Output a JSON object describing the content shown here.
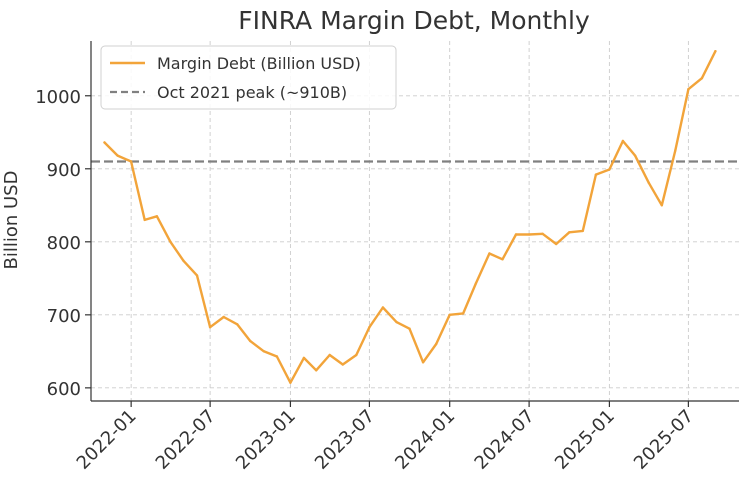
{
  "chart_data": {
    "type": "line",
    "title": "FINRA Margin Debt, Monthly",
    "xlabel": "",
    "ylabel": "Billion USD",
    "ylim": [
      582,
      1075
    ],
    "xlim": [
      "2021-10-01",
      "2025-10-25"
    ],
    "grid": true,
    "legend_position": "top-left",
    "x_ticks": [
      "2022-01",
      "2022-07",
      "2023-01",
      "2023-07",
      "2024-01",
      "2024-07",
      "2025-01",
      "2025-07"
    ],
    "y_ticks": [
      600,
      700,
      800,
      900,
      1000
    ],
    "series": [
      {
        "name": "Margin Debt (Billion USD)",
        "color": "#f2a43a",
        "style": "solid",
        "x": [
          "2021-11",
          "2021-12",
          "2022-01",
          "2022-02",
          "2022-03",
          "2022-04",
          "2022-05",
          "2022-06",
          "2022-07",
          "2022-08",
          "2022-09",
          "2022-10",
          "2022-11",
          "2022-12",
          "2023-01",
          "2023-02",
          "2023-03",
          "2023-04",
          "2023-05",
          "2023-06",
          "2023-07",
          "2023-08",
          "2023-09",
          "2023-10",
          "2023-11",
          "2023-12",
          "2024-01",
          "2024-02",
          "2024-03",
          "2024-04",
          "2024-05",
          "2024-06",
          "2024-07",
          "2024-08",
          "2024-09",
          "2024-10",
          "2024-11",
          "2024-12",
          "2025-01",
          "2025-02",
          "2025-03",
          "2025-04",
          "2025-05",
          "2025-06",
          "2025-07",
          "2025-08",
          "2025-09"
        ],
        "values": [
          936,
          918,
          910,
          830,
          835,
          800,
          774,
          754,
          683,
          697,
          687,
          664,
          650,
          643,
          607,
          641,
          624,
          645,
          632,
          645,
          683,
          710,
          690,
          681,
          635,
          660,
          700,
          702,
          743,
          784,
          776,
          810,
          810,
          811,
          797,
          813,
          815,
          892,
          899,
          938,
          918,
          881,
          850,
          925,
          1009,
          1024,
          1061
        ]
      }
    ],
    "reference_lines": [
      {
        "name": "Oct 2021 peak (~910B)",
        "value": 910,
        "color": "#808080",
        "style": "dashed"
      }
    ]
  }
}
